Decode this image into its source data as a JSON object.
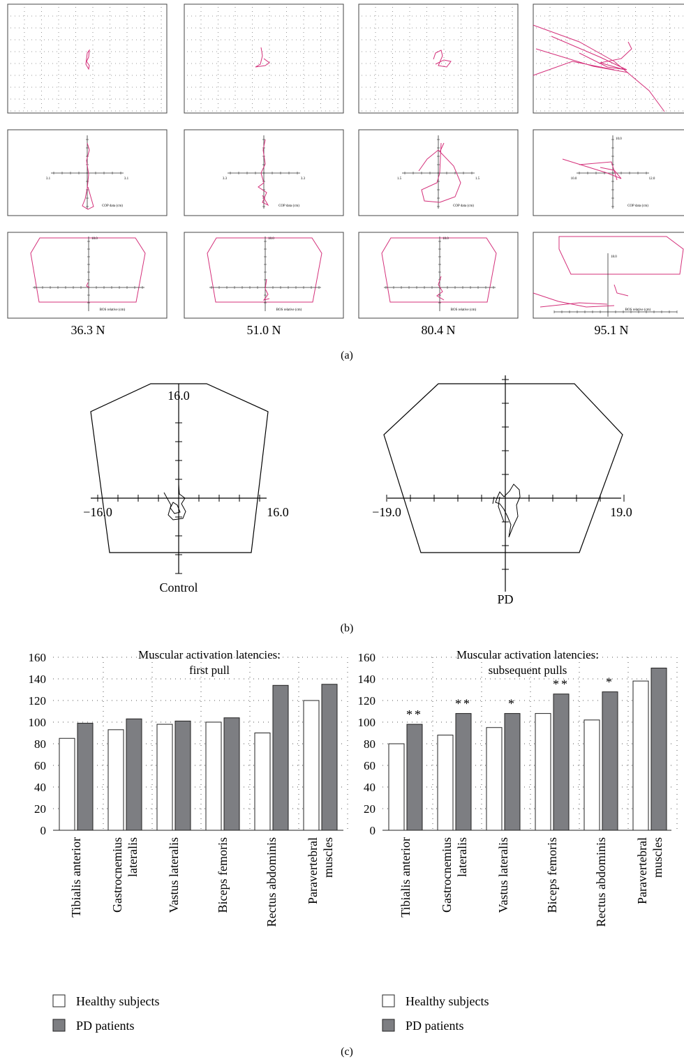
{
  "panel_a": {
    "label": "(a)",
    "force_labels": [
      "36.3 N",
      "51.0 N",
      "80.4 N",
      "95.1 N"
    ],
    "cop_axis_label": "COP data (cm)",
    "bos_axis_label": "BOS relative (cm)",
    "small_tick_values": {
      "cop": [
        [
          "3.1",
          "3.1"
        ],
        [
          "3.3",
          "3.3"
        ],
        [
          "1.5",
          "1.5"
        ],
        [
          "10.0",
          "12.0",
          "10.0"
        ]
      ],
      "bos": [
        "18.0",
        "18.0",
        "18.0",
        "18.0"
      ]
    }
  },
  "panel_b": {
    "label": "(b)",
    "control": {
      "name": "Control",
      "top": "16.0",
      "left": "−16.0",
      "right": "16.0"
    },
    "pd": {
      "name": "PD",
      "left": "−19.0",
      "right": "19.0"
    }
  },
  "panel_c": {
    "label": "(c)"
  },
  "colors": {
    "trace": "#d4307a",
    "healthy": "#ffffff",
    "pd": "#7d7e82",
    "frame": "#333333"
  },
  "chart_data": [
    {
      "type": "bar",
      "title": "Muscular activation latencies: first pull",
      "title_lines": [
        "Muscular activation latencies:",
        "first pull"
      ],
      "categories": [
        "Tibialis anterior",
        "Gastrocnemius lateralis",
        "Vastus lateralis",
        "Biceps femoris",
        "Rectus abdominis",
        "Paravertebral muscles"
      ],
      "category_lines": [
        [
          "Tibialis anterior"
        ],
        [
          "Gastrocnemius",
          "lateralis"
        ],
        [
          "Vastus lateralis"
        ],
        [
          "Biceps femoris"
        ],
        [
          "Rectus abdominis"
        ],
        [
          "Paravertebral",
          "muscles"
        ]
      ],
      "series": [
        {
          "name": "Healthy subjects",
          "values": [
            85,
            93,
            98,
            100,
            90,
            120
          ],
          "color": "#ffffff"
        },
        {
          "name": "PD patients",
          "values": [
            99,
            103,
            101,
            104,
            134,
            135
          ],
          "color": "#7d7e82"
        }
      ],
      "significance": [
        "",
        "",
        "",
        "",
        "",
        ""
      ],
      "ylim": [
        0,
        160
      ],
      "yticks": [
        0,
        20,
        40,
        60,
        80,
        100,
        120,
        140,
        160
      ],
      "grid": true,
      "legend_position": "bottom-left"
    },
    {
      "type": "bar",
      "title": "Muscular activation latencies: subsequent pulls",
      "title_lines": [
        "Muscular activation latencies:",
        "subsequent pulls"
      ],
      "categories": [
        "Tibialis anterior",
        "Gastrocnemius lateralis",
        "Vastus lateralis",
        "Biceps femoris",
        "Rectus abdominis",
        "Paravertebral muscles"
      ],
      "category_lines": [
        [
          "Tibialis anterior"
        ],
        [
          "Gastrocnemius",
          "lateralis"
        ],
        [
          "Vastus lateralis"
        ],
        [
          "Biceps femoris"
        ],
        [
          "Rectus abdominis"
        ],
        [
          "Paravertebral",
          "muscles"
        ]
      ],
      "series": [
        {
          "name": "Healthy subjects",
          "values": [
            80,
            88,
            95,
            108,
            102,
            138
          ],
          "color": "#ffffff"
        },
        {
          "name": "PD patients",
          "values": [
            98,
            108,
            108,
            126,
            128,
            150
          ],
          "color": "#7d7e82"
        }
      ],
      "significance": [
        "**",
        "**",
        "*",
        "**",
        "*",
        ""
      ],
      "ylim": [
        0,
        160
      ],
      "yticks": [
        0,
        20,
        40,
        60,
        80,
        100,
        120,
        140,
        160
      ],
      "grid": true,
      "legend_position": "bottom-left"
    }
  ]
}
